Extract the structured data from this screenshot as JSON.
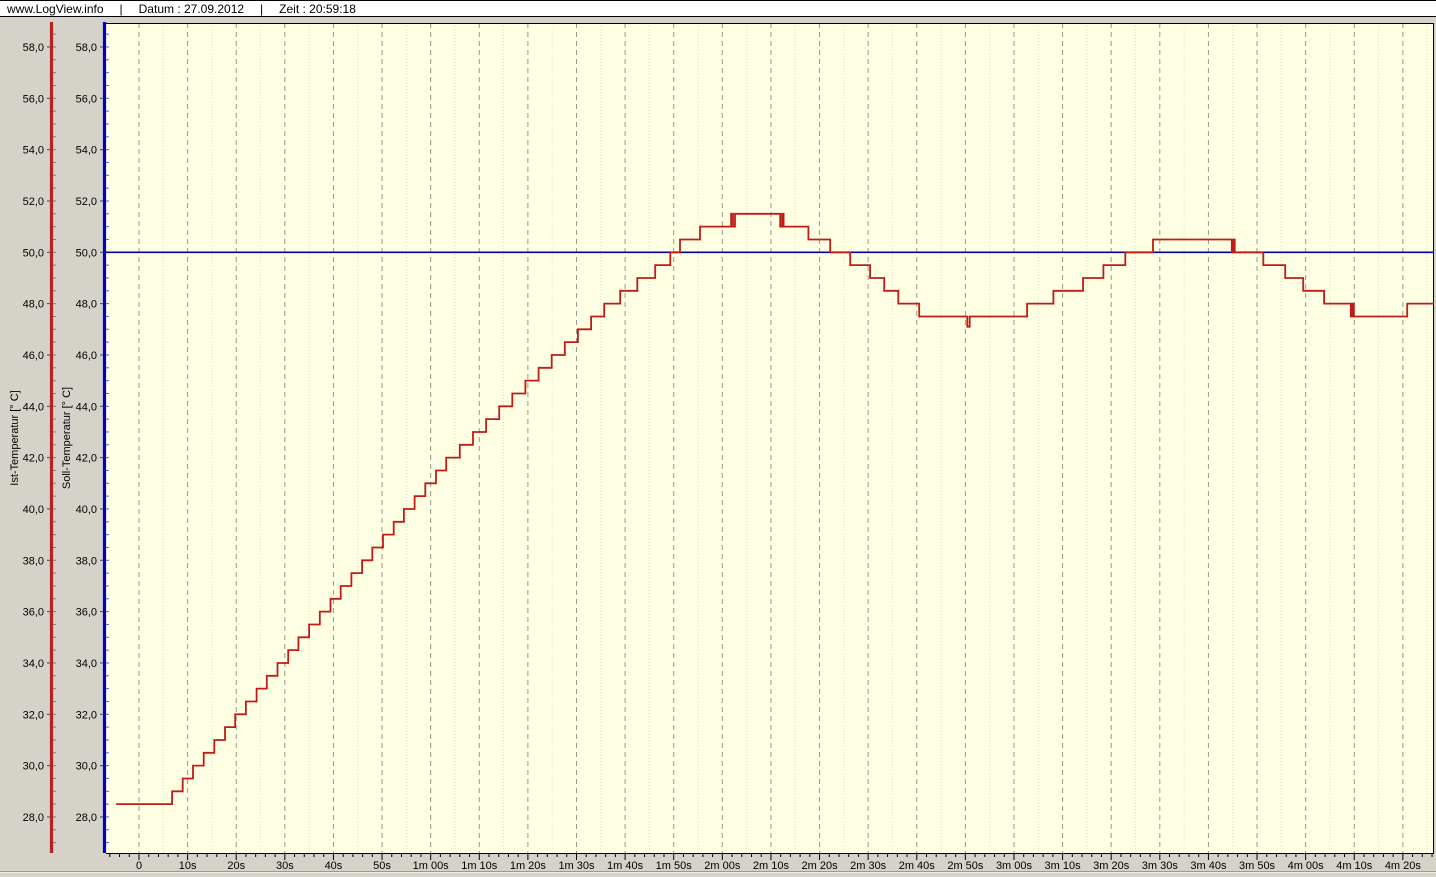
{
  "header": {
    "brand": "www.LogView.info",
    "sep": "|",
    "datum": "Datum : 27.09.2012",
    "zeit": "Zeit : 20:59:18"
  },
  "chart_data": {
    "type": "line",
    "title": "",
    "plot_background": "#ffffe3",
    "window_background": "#d5d2ca",
    "grid": {
      "major_interval_s": 10,
      "minor_interval_s": 5,
      "style": "dashed-vertical"
    },
    "x_axis": {
      "unit": "time",
      "range_visible_seconds": [
        -7,
        266.5
      ],
      "tick_seconds": [
        0,
        10,
        20,
        30,
        40,
        50,
        60,
        70,
        80,
        90,
        100,
        110,
        120,
        130,
        140,
        150,
        160,
        170,
        180,
        190,
        200,
        210,
        220,
        230,
        240,
        250,
        260
      ],
      "tick_labels": [
        "0",
        "10s",
        "20s",
        "30s",
        "40s",
        "50s",
        "1m 00s",
        "1m 10s",
        "1m 20s",
        "1m 30s",
        "1m 40s",
        "1m 50s",
        "2m 00s",
        "2m 10s",
        "2m 20s",
        "2m 30s",
        "2m 40s",
        "2m 50s",
        "3m 00s",
        "3m 10s",
        "3m 20s",
        "3m 30s",
        "3m 40s",
        "3m 50s",
        "4m 00s",
        "4m 10s",
        "4m 20s"
      ]
    },
    "y_axes": [
      {
        "id": "ist",
        "label": "Ist-Temperatur [° C]",
        "axis_color": "#b42222",
        "range_visible": [
          26.6,
          58.9
        ],
        "tick_values": [
          58,
          56,
          54,
          52,
          50,
          48,
          46,
          44,
          42,
          40,
          38,
          36,
          34,
          32,
          30,
          28
        ],
        "tick_labels": [
          "58,0",
          "56,0",
          "54,0",
          "52,0",
          "50,0",
          "48,0",
          "46,0",
          "44,0",
          "42,0",
          "40,0",
          "38,0",
          "36,0",
          "34,0",
          "32,0",
          "30,0",
          "28,0"
        ]
      },
      {
        "id": "soll",
        "label": "Soll-Temperatur [° C]",
        "axis_color": "#0000c8",
        "range_visible": [
          26.6,
          58.9
        ],
        "tick_values": [
          58,
          56,
          54,
          52,
          50,
          48,
          46,
          44,
          42,
          40,
          38,
          36,
          34,
          32,
          30,
          28
        ],
        "tick_labels": [
          "58,0",
          "56,0",
          "54,0",
          "52,0",
          "50,0",
          "48,0",
          "46,0",
          "44,0",
          "42,0",
          "40,0",
          "38,0",
          "36,0",
          "34,0",
          "32,0",
          "30,0",
          "28,0"
        ]
      }
    ],
    "series": [
      {
        "name": "Ist-Temperatur",
        "color": "#c11b17",
        "mode": "step-after",
        "points": [
          [
            -4.7,
            28.5
          ],
          [
            6.8,
            29.0
          ],
          [
            9.0,
            29.5
          ],
          [
            11.1,
            30.0
          ],
          [
            13.3,
            30.5
          ],
          [
            15.5,
            31.0
          ],
          [
            17.7,
            31.5
          ],
          [
            19.8,
            32.0
          ],
          [
            22.0,
            32.5
          ],
          [
            24.2,
            33.0
          ],
          [
            26.3,
            33.5
          ],
          [
            28.5,
            34.0
          ],
          [
            30.7,
            34.5
          ],
          [
            32.8,
            35.0
          ],
          [
            35.0,
            35.5
          ],
          [
            37.2,
            36.0
          ],
          [
            39.4,
            36.5
          ],
          [
            41.5,
            37.0
          ],
          [
            43.7,
            37.5
          ],
          [
            45.9,
            38.0
          ],
          [
            48.0,
            38.5
          ],
          [
            50.2,
            39.0
          ],
          [
            52.4,
            39.5
          ],
          [
            54.5,
            40.0
          ],
          [
            56.7,
            40.5
          ],
          [
            58.9,
            41.0
          ],
          [
            61.1,
            41.5
          ],
          [
            63.2,
            42.0
          ],
          [
            66.0,
            42.5
          ],
          [
            68.7,
            43.0
          ],
          [
            71.4,
            43.5
          ],
          [
            74.1,
            44.0
          ],
          [
            76.8,
            44.5
          ],
          [
            79.5,
            45.0
          ],
          [
            82.2,
            45.5
          ],
          [
            84.9,
            46.0
          ],
          [
            87.6,
            46.5
          ],
          [
            90.3,
            47.0
          ],
          [
            93.0,
            47.5
          ],
          [
            95.7,
            48.0
          ],
          [
            99.0,
            48.5
          ],
          [
            102.5,
            49.0
          ],
          [
            106.2,
            49.5
          ],
          [
            109.3,
            50.0
          ],
          [
            111.3,
            50.5
          ],
          [
            115.4,
            51.0
          ],
          [
            121.8,
            51.5
          ],
          [
            122.2,
            51.0
          ],
          [
            122.6,
            51.5
          ],
          [
            131.9,
            51.0
          ],
          [
            132.3,
            51.5
          ],
          [
            132.6,
            51.0
          ],
          [
            137.7,
            50.5
          ],
          [
            142.2,
            50.0
          ],
          [
            146.3,
            49.5
          ],
          [
            150.4,
            49.0
          ],
          [
            153.3,
            48.5
          ],
          [
            156.2,
            48.0
          ],
          [
            160.5,
            47.5
          ],
          [
            170.4,
            47.1
          ],
          [
            170.9,
            47.5
          ],
          [
            182.7,
            48.0
          ],
          [
            188.1,
            48.5
          ],
          [
            194.2,
            49.0
          ],
          [
            198.4,
            49.5
          ],
          [
            202.9,
            50.0
          ],
          [
            208.6,
            50.5
          ],
          [
            224.8,
            50.0
          ],
          [
            225.1,
            50.5
          ],
          [
            225.4,
            50.0
          ],
          [
            231.3,
            49.5
          ],
          [
            235.8,
            49.0
          ],
          [
            239.5,
            48.5
          ],
          [
            243.8,
            48.0
          ],
          [
            249.3,
            47.5
          ],
          [
            249.6,
            48.0
          ],
          [
            249.9,
            47.5
          ],
          [
            260.9,
            48.0
          ],
          [
            266.4,
            48.0
          ]
        ]
      },
      {
        "name": "Soll-Temperatur",
        "color": "#0000a0",
        "mode": "line",
        "constant_value": 50.0,
        "points": [
          [
            -7,
            50.0
          ],
          [
            266.5,
            50.0
          ]
        ]
      }
    ]
  }
}
